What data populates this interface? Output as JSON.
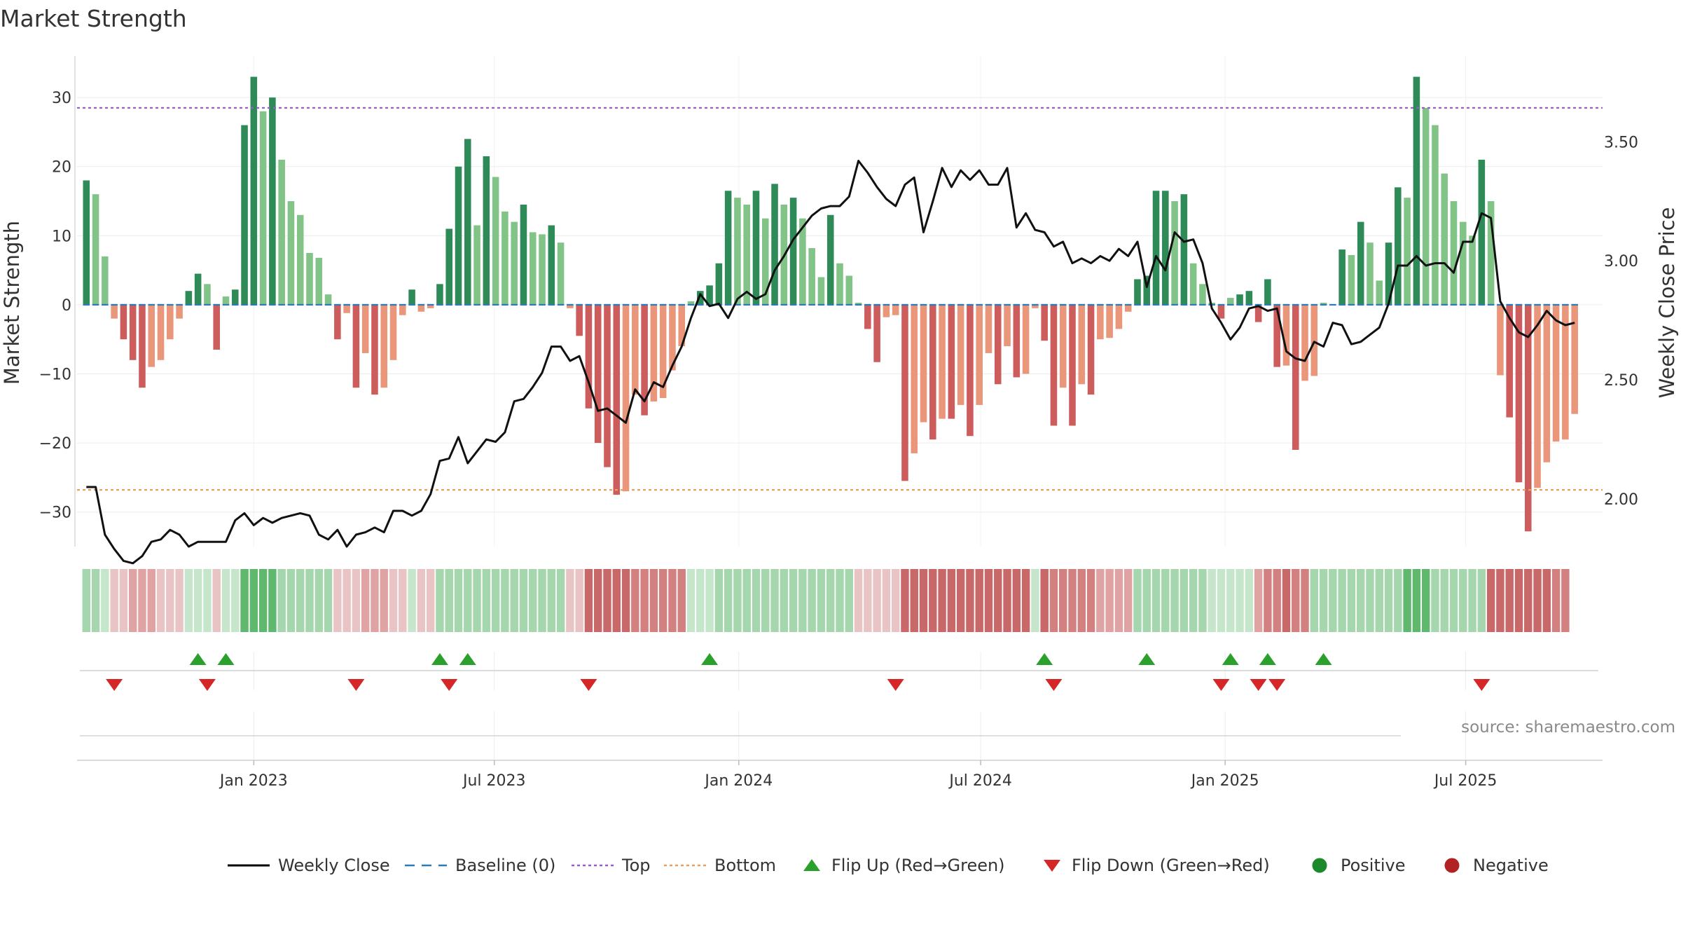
{
  "chart_data": {
    "type": "bar",
    "title": "Market Strength",
    "ylabel": "Market Strength",
    "y2label": "Weekly Close Price",
    "ylim": [
      -35,
      36
    ],
    "y2lim": [
      1.8,
      3.86
    ],
    "yticks": [
      30,
      20,
      10,
      0,
      -10,
      -20,
      -30
    ],
    "ytick_labels": [
      "30",
      "20",
      "10",
      "0",
      "−10",
      "−20",
      "−30"
    ],
    "y2ticks": [
      3.5,
      3.0,
      2.5,
      2.0
    ],
    "y2tick_labels": [
      "3.50",
      "3.00",
      "2.50",
      "2.00"
    ],
    "xlim": [
      "2022-08-21",
      "2025-10-12"
    ],
    "xticks": [
      "2023-01-01",
      "2023-07-01",
      "2024-01-01",
      "2024-07-01",
      "2025-01-01",
      "2025-07-01"
    ],
    "xtick_labels": [
      "Jan 2023",
      "Jul 2023",
      "Jan 2024",
      "Jul 2024",
      "Jan 2025",
      "Jul 2025"
    ],
    "grid": true,
    "legend_position": "bottom",
    "reference_lines": [
      {
        "name": "Baseline (0)",
        "value": 0,
        "color": "#2c7bb6",
        "style": "dashed"
      },
      {
        "name": "Top",
        "value": 28.5,
        "color": "#9b59d0",
        "style": "dotted"
      },
      {
        "name": "Bottom",
        "value": -26.8,
        "color": "#e8a060",
        "style": "dotted"
      }
    ],
    "start_date": "2022-08-28",
    "strength": [
      18,
      16,
      7,
      -2,
      -5,
      -8,
      -12,
      -9,
      -8,
      -5,
      -2,
      2,
      4.5,
      3,
      -6.5,
      1.2,
      2.2,
      26,
      33,
      28,
      30,
      21,
      15,
      13,
      7.5,
      6.8,
      1.5,
      -5,
      -1.2,
      -12,
      -7,
      -13,
      -12,
      -8,
      -1.5,
      2.2,
      -1,
      -0.5,
      3,
      11,
      20,
      24,
      11.5,
      21.5,
      18.5,
      13.5,
      12,
      14.5,
      10.5,
      10.2,
      11.5,
      9,
      -0.5,
      -4.5,
      -15,
      -20,
      -23.5,
      -27.5,
      -27,
      -13,
      -16,
      -14,
      -13.5,
      -9.5,
      -6,
      0.5,
      2,
      2.8,
      6,
      16.5,
      15.5,
      14.5,
      16.5,
      12.5,
      17.5,
      14.5,
      15.5,
      12.5,
      8.2,
      4,
      13,
      6,
      4.2,
      0.3,
      -3.5,
      -8.3,
      -1.8,
      -1.5,
      -25.5,
      -21.5,
      -17,
      -19.5,
      -16.5,
      -16.5,
      -14.5,
      -19,
      -14.5,
      -7,
      -11.5,
      -6,
      -10.5,
      -10,
      -0.5,
      -5.2,
      -17.5,
      -12,
      -17.5,
      -11.5,
      -13,
      -5,
      -4.8,
      -3.5,
      -1,
      3.7,
      4.2,
      16.5,
      16.5,
      15,
      16,
      6,
      3,
      0.3,
      -2,
      1,
      1.5,
      2,
      -2.5,
      3.7,
      -9,
      -8.8,
      -21,
      -11,
      -10.3,
      0.3,
      -0.1,
      8,
      7.2,
      12,
      9,
      3.5,
      9,
      17,
      15.5,
      33,
      28.5,
      26,
      19,
      15,
      12,
      10,
      21,
      15,
      -10.2,
      -16.3,
      -25.7,
      -32.8,
      -26.5,
      -22.8,
      -19.8,
      -19.5,
      -15.8
    ],
    "close": [
      2.05,
      2.05,
      1.85,
      1.79,
      1.74,
      1.73,
      1.76,
      1.82,
      1.83,
      1.87,
      1.85,
      1.8,
      1.82,
      1.82,
      1.82,
      1.82,
      1.91,
      1.94,
      1.89,
      1.92,
      1.9,
      1.92,
      1.93,
      1.94,
      1.93,
      1.85,
      1.83,
      1.87,
      1.8,
      1.85,
      1.86,
      1.88,
      1.86,
      1.95,
      1.95,
      1.93,
      1.95,
      2.02,
      2.16,
      2.17,
      2.26,
      2.15,
      2.2,
      2.25,
      2.24,
      2.28,
      2.41,
      2.42,
      2.47,
      2.53,
      2.64,
      2.64,
      2.58,
      2.6,
      2.49,
      2.37,
      2.38,
      2.35,
      2.32,
      2.46,
      2.41,
      2.49,
      2.47,
      2.56,
      2.64,
      2.76,
      2.86,
      2.81,
      2.82,
      2.76,
      2.84,
      2.87,
      2.84,
      2.86,
      2.96,
      3.02,
      3.09,
      3.14,
      3.19,
      3.22,
      3.23,
      3.23,
      3.27,
      3.42,
      3.37,
      3.31,
      3.26,
      3.23,
      3.32,
      3.35,
      3.12,
      3.25,
      3.39,
      3.31,
      3.38,
      3.34,
      3.38,
      3.32,
      3.32,
      3.39,
      3.14,
      3.2,
      3.13,
      3.12,
      3.06,
      3.08,
      2.99,
      3.01,
      2.99,
      3.02,
      3.0,
      3.05,
      3.02,
      3.08,
      2.89,
      3.02,
      2.96,
      3.12,
      3.08,
      3.09,
      2.99,
      2.8,
      2.74,
      2.67,
      2.72,
      2.8,
      2.81,
      2.79,
      2.8,
      2.62,
      2.59,
      2.58,
      2.66,
      2.64,
      2.74,
      2.73,
      2.65,
      2.66,
      2.69,
      2.72,
      2.82,
      2.98,
      2.98,
      3.02,
      2.98,
      2.99,
      2.99,
      2.95,
      3.08,
      3.08,
      3.2,
      3.18,
      2.83,
      2.76,
      2.7,
      2.68,
      2.73,
      2.79,
      2.75,
      2.73,
      2.74
    ],
    "heat_colors": [
      "#5fb86d",
      "#a5d6ad",
      "#c6e6cb",
      "#e9c4c4",
      "#e0a3a3",
      "#d28080",
      "#c86868"
    ],
    "heat": [
      1,
      1,
      2,
      3,
      3,
      4,
      4,
      4,
      3,
      3,
      3,
      2,
      2,
      2,
      3,
      2,
      2,
      0,
      0,
      0,
      0,
      1,
      1,
      1,
      1,
      1,
      1,
      3,
      3,
      3,
      4,
      4,
      4,
      3,
      3,
      2,
      3,
      3,
      1,
      1,
      1,
      1,
      1,
      1,
      1,
      1,
      1,
      1,
      1,
      1,
      1,
      1,
      3,
      3,
      6,
      6,
      6,
      6,
      6,
      5,
      5,
      5,
      5,
      5,
      5,
      2,
      2,
      2,
      1,
      1,
      1,
      1,
      1,
      1,
      1,
      1,
      1,
      1,
      1,
      1,
      1,
      1,
      1,
      3,
      3,
      3,
      3,
      3,
      6,
      6,
      6,
      6,
      6,
      6,
      6,
      6,
      6,
      6,
      6,
      6,
      6,
      6,
      2,
      6,
      5,
      5,
      5,
      5,
      5,
      4,
      4,
      4,
      4,
      1,
      1,
      1,
      1,
      1,
      1,
      1,
      1,
      2,
      2,
      2,
      2,
      2,
      4,
      5,
      5,
      6,
      5,
      5,
      1,
      1,
      1,
      1,
      1,
      1,
      1,
      1,
      1,
      1,
      0,
      0,
      0,
      1,
      1,
      1,
      1,
      1,
      1,
      6,
      6,
      6,
      6,
      6,
      6,
      6,
      5,
      5
    ],
    "flips": [
      {
        "type": "down",
        "date": "2022-09-18"
      },
      {
        "type": "up",
        "date": "2022-11-20"
      },
      {
        "type": "down",
        "date": "2022-11-27"
      },
      {
        "type": "up",
        "date": "2022-12-11"
      },
      {
        "type": "down",
        "date": "2023-03-19"
      },
      {
        "type": "up",
        "date": "2023-05-21"
      },
      {
        "type": "down",
        "date": "2023-05-28"
      },
      {
        "type": "up",
        "date": "2023-06-11"
      },
      {
        "type": "down",
        "date": "2023-09-10"
      },
      {
        "type": "up",
        "date": "2023-12-10"
      },
      {
        "type": "down",
        "date": "2024-04-28"
      },
      {
        "type": "up",
        "date": "2024-08-18"
      },
      {
        "type": "down",
        "date": "2024-08-25"
      },
      {
        "type": "up",
        "date": "2024-11-03"
      },
      {
        "type": "down",
        "date": "2024-12-29"
      },
      {
        "type": "up",
        "date": "2025-01-05"
      },
      {
        "type": "down",
        "date": "2025-01-26"
      },
      {
        "type": "up",
        "date": "2025-02-02"
      },
      {
        "type": "down",
        "date": "2025-02-09"
      },
      {
        "type": "up",
        "date": "2025-03-16"
      },
      {
        "type": "down",
        "date": "2025-07-13"
      }
    ],
    "legend": [
      {
        "label": "Weekly Close",
        "symbol": "line",
        "color": "#000000"
      },
      {
        "label": "Baseline (0)",
        "symbol": "dash",
        "color": "#2c7bb6"
      },
      {
        "label": "Top",
        "symbol": "dot",
        "color": "#9b59d0"
      },
      {
        "label": "Bottom",
        "symbol": "dot",
        "color": "#e8a060"
      },
      {
        "label": "Flip Up (Red→Green)",
        "symbol": "triangle-up",
        "color": "#2ca02c"
      },
      {
        "label": "Flip Down (Green→Red)",
        "symbol": "triangle-down",
        "color": "#d62728"
      },
      {
        "label": "Positive",
        "symbol": "circle",
        "color": "#1a8a2a"
      },
      {
        "label": "Negative",
        "symbol": "circle",
        "color": "#b22222"
      }
    ],
    "bar_colors": {
      "pos_strong": "#2e8b57",
      "pos_weak": "#82c488",
      "neg_strong": "#cd5c5c",
      "neg_weak": "#e9967a"
    }
  },
  "source": "source: sharemaestro.com"
}
